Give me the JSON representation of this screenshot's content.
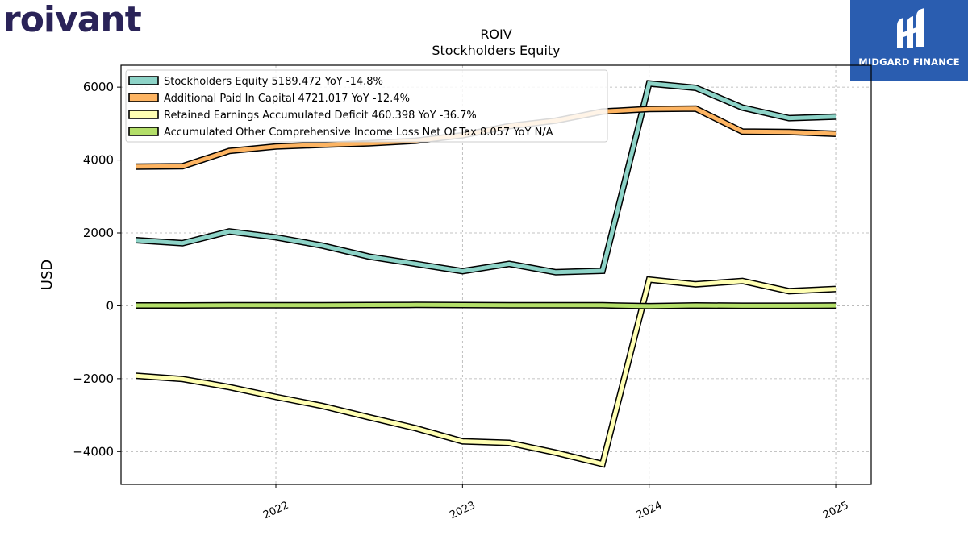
{
  "brand": {
    "logo_text": "roivant"
  },
  "partner": {
    "logo_text": "MIDGARD FINANCE"
  },
  "chart_data": {
    "type": "line",
    "title": "ROIV",
    "subtitle": "Stockholders  Equity",
    "ylabel": "USD",
    "xlabel": "",
    "ylim": [
      -4900,
      6600
    ],
    "xlim": [
      2021.17,
      2025.19
    ],
    "yticks": [
      -4000,
      -2000,
      0,
      2000,
      4000,
      6000
    ],
    "ytick_labels": [
      "−4000",
      "−2000",
      "0",
      "2000",
      "4000",
      "6000"
    ],
    "xticks": [
      2022,
      2023,
      2024,
      2025
    ],
    "xtick_labels": [
      "2022",
      "2023",
      "2024",
      "2025"
    ],
    "grid": true,
    "legend_position": "top-left",
    "x": [
      2021.25,
      2021.5,
      2021.75,
      2022.0,
      2022.25,
      2022.5,
      2022.75,
      2023.0,
      2023.25,
      2023.5,
      2023.75,
      2024.0,
      2024.25,
      2024.5,
      2024.75,
      2025.0
    ],
    "series": [
      {
        "name": "Stockholders Equity",
        "legend": "Stockholders Equity  5189.472 YoY -14.8%",
        "color": "#8dd3c7",
        "values": [
          1800,
          1720,
          2040,
          1880,
          1650,
          1350,
          1150,
          950,
          1150,
          920,
          960,
          6100,
          5980,
          5440,
          5150,
          5189
        ]
      },
      {
        "name": "Additional Paid In Capital",
        "legend": "Additional Paid In Capital  4721.017 YoY -12.4%",
        "color": "#fdb462",
        "values": [
          3820,
          3830,
          4250,
          4370,
          4420,
          4460,
          4530,
          4680,
          4930,
          5080,
          5330,
          5400,
          5410,
          4780,
          4770,
          4721
        ]
      },
      {
        "name": "Retained Earnings Accumulated Deficit",
        "legend": "Retained Earnings Accumulated Deficit  460.398 YoY -36.7%",
        "color": "#ffffb3",
        "values": [
          -1920,
          -2010,
          -2230,
          -2500,
          -2750,
          -3060,
          -3360,
          -3720,
          -3760,
          -4030,
          -4340,
          720,
          590,
          680,
          400,
          460
        ]
      },
      {
        "name": "Accumulated Other Comprehensive Income Loss Net Of Tax",
        "legend": "Accumulated Other Comprehensive Income Loss Net Of Tax  8.057 YoY N/A",
        "color": "#b3de69",
        "values": [
          10,
          10,
          15,
          15,
          15,
          20,
          25,
          20,
          15,
          15,
          15,
          -10,
          10,
          0,
          0,
          8
        ]
      }
    ]
  }
}
